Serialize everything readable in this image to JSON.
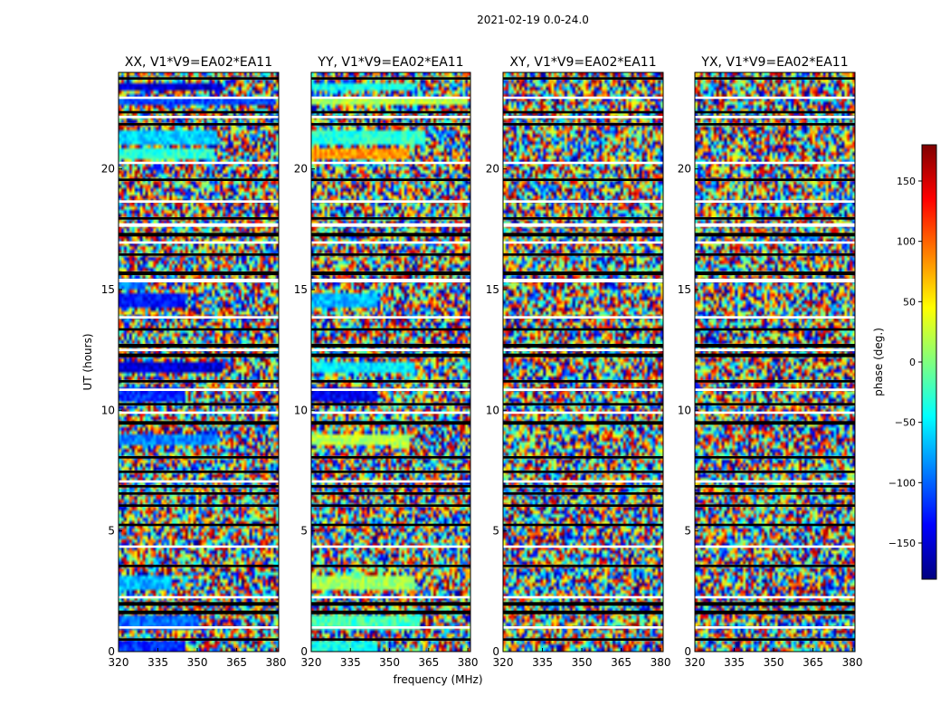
{
  "figure_title": "2021-02-19 0.0-24.0",
  "xlabel": "frequency (MHz)",
  "ylabel": "UT (hours)",
  "colorbar": {
    "label": "phase (deg.)",
    "range": [
      -180,
      180
    ],
    "ticks": [
      -150,
      -100,
      -50,
      0,
      50,
      100,
      150
    ],
    "tick_labels": [
      "−150",
      "−100",
      "−50",
      "0",
      "50",
      "100",
      "150"
    ],
    "colormap": [
      "#00007f",
      "#0000ff",
      "#007fff",
      "#00ffff",
      "#7fff7f",
      "#ffff00",
      "#ff7f00",
      "#ff0000",
      "#7f0000"
    ]
  },
  "chart_data": [
    {
      "type": "heatmap",
      "title": "XX, V1*V9=EA02*EA11",
      "xlabel": "frequency (MHz)",
      "ylabel": "UT (hours)",
      "xlim": [
        320,
        381
      ],
      "ylim": [
        0,
        24
      ],
      "xticks": [
        320,
        335,
        350,
        365,
        380
      ],
      "yticks": [
        0,
        5,
        10,
        15,
        20
      ],
      "color_scale": "phase (deg.)",
      "coherent_bands": [
        {
          "t0": 0.05,
          "t1": 0.45,
          "f_end": 345,
          "phase": -120
        },
        {
          "t0": 0.85,
          "t1": 1.55,
          "f_end": 350,
          "phase": -95
        },
        {
          "t0": 2.6,
          "t1": 3.2,
          "f_end": 340,
          "phase": -70
        },
        {
          "t0": 8.6,
          "t1": 8.95,
          "f_end": 358,
          "phase": -90
        },
        {
          "t0": 10.3,
          "t1": 11.0,
          "f_end": 345,
          "phase": -120
        },
        {
          "t0": 11.6,
          "t1": 12.0,
          "f_end": 360,
          "phase": -150
        },
        {
          "t0": 14.3,
          "t1": 14.8,
          "f_end": 345,
          "phase": -130
        },
        {
          "t0": 15.0,
          "t1": 15.4,
          "f_end": 330,
          "phase": -90
        },
        {
          "t0": 20.4,
          "t1": 20.8,
          "f_end": 357,
          "phase": -30
        },
        {
          "t0": 21.0,
          "t1": 21.6,
          "f_end": 358,
          "phase": -60
        },
        {
          "t0": 22.6,
          "t1": 23.0,
          "f_end": 380,
          "phase": -110
        },
        {
          "t0": 23.2,
          "t1": 23.6,
          "f_end": 360,
          "phase": -150
        }
      ]
    },
    {
      "type": "heatmap",
      "title": "YY, V1*V9=EA02*EA11",
      "xlabel": "frequency (MHz)",
      "ylabel": "UT (hours)",
      "xlim": [
        320,
        381
      ],
      "ylim": [
        0,
        24
      ],
      "xticks": [
        320,
        335,
        350,
        365,
        380
      ],
      "yticks": [
        0,
        5,
        10,
        15,
        20
      ],
      "color_scale": "phase (deg.)",
      "coherent_bands": [
        {
          "t0": 0.05,
          "t1": 0.45,
          "f_end": 345,
          "phase": -40
        },
        {
          "t0": 0.85,
          "t1": 1.55,
          "f_end": 362,
          "phase": -20
        },
        {
          "t0": 2.6,
          "t1": 3.2,
          "f_end": 360,
          "phase": 10
        },
        {
          "t0": 8.6,
          "t1": 8.95,
          "f_end": 358,
          "phase": 20
        },
        {
          "t0": 10.3,
          "t1": 11.0,
          "f_end": 345,
          "phase": -140
        },
        {
          "t0": 11.6,
          "t1": 12.0,
          "f_end": 360,
          "phase": -50
        },
        {
          "t0": 14.3,
          "t1": 14.8,
          "f_end": 345,
          "phase": -70
        },
        {
          "t0": 20.4,
          "t1": 20.8,
          "f_end": 358,
          "phase": 80
        },
        {
          "t0": 21.0,
          "t1": 21.6,
          "f_end": 364,
          "phase": -30
        },
        {
          "t0": 22.6,
          "t1": 23.0,
          "f_end": 380,
          "phase": 20
        },
        {
          "t0": 23.2,
          "t1": 23.6,
          "f_end": 360,
          "phase": -40
        }
      ]
    },
    {
      "type": "heatmap",
      "title": "XY, V1*V9=EA02*EA11",
      "xlabel": "frequency (MHz)",
      "ylabel": "UT (hours)",
      "xlim": [
        320,
        381
      ],
      "ylim": [
        0,
        24
      ],
      "xticks": [
        320,
        335,
        350,
        365,
        380
      ],
      "yticks": [
        0,
        5,
        10,
        15,
        20
      ],
      "color_scale": "phase (deg.)",
      "coherent_bands": []
    },
    {
      "type": "heatmap",
      "title": "YX, V1*V9=EA02*EA11",
      "xlabel": "frequency (MHz)",
      "ylabel": "UT (hours)",
      "xlim": [
        320,
        381
      ],
      "ylim": [
        0,
        24
      ],
      "xticks": [
        320,
        335,
        350,
        365,
        380
      ],
      "yticks": [
        0,
        5,
        10,
        15,
        20
      ],
      "color_scale": "phase (deg.)",
      "coherent_bands": []
    }
  ],
  "flagged_intervals": [
    [
      0.45,
      0.55
    ],
    [
      1.55,
      1.7
    ],
    [
      1.9,
      2.05
    ],
    [
      3.5,
      3.6
    ],
    [
      5.2,
      5.3
    ],
    [
      6.0,
      6.1
    ],
    [
      6.5,
      6.6
    ],
    [
      6.8,
      6.9
    ],
    [
      7.4,
      7.5
    ],
    [
      8.0,
      8.1
    ],
    [
      9.4,
      9.55
    ],
    [
      10.2,
      10.3
    ],
    [
      11.15,
      11.25
    ],
    [
      12.2,
      12.35
    ],
    [
      12.6,
      12.75
    ],
    [
      13.3,
      13.4
    ],
    [
      15.6,
      15.75
    ],
    [
      16.4,
      16.5
    ],
    [
      17.2,
      17.35
    ],
    [
      17.9,
      18.0
    ],
    [
      19.5,
      19.6
    ],
    [
      21.8,
      21.9
    ],
    [
      22.3,
      22.4
    ],
    [
      23.7,
      23.8
    ]
  ],
  "blank_intervals": [
    [
      0.95,
      1.05
    ],
    [
      2.2,
      2.3
    ],
    [
      4.3,
      4.4
    ],
    [
      7.0,
      7.1
    ],
    [
      9.85,
      9.95
    ],
    [
      10.8,
      10.9
    ],
    [
      12.45,
      12.55
    ],
    [
      13.8,
      13.9
    ],
    [
      15.3,
      15.45
    ],
    [
      16.9,
      17.0
    ],
    [
      17.6,
      17.75
    ],
    [
      18.6,
      18.7
    ],
    [
      20.2,
      20.3
    ],
    [
      22.1,
      22.2
    ],
    [
      22.9,
      23.0
    ]
  ]
}
